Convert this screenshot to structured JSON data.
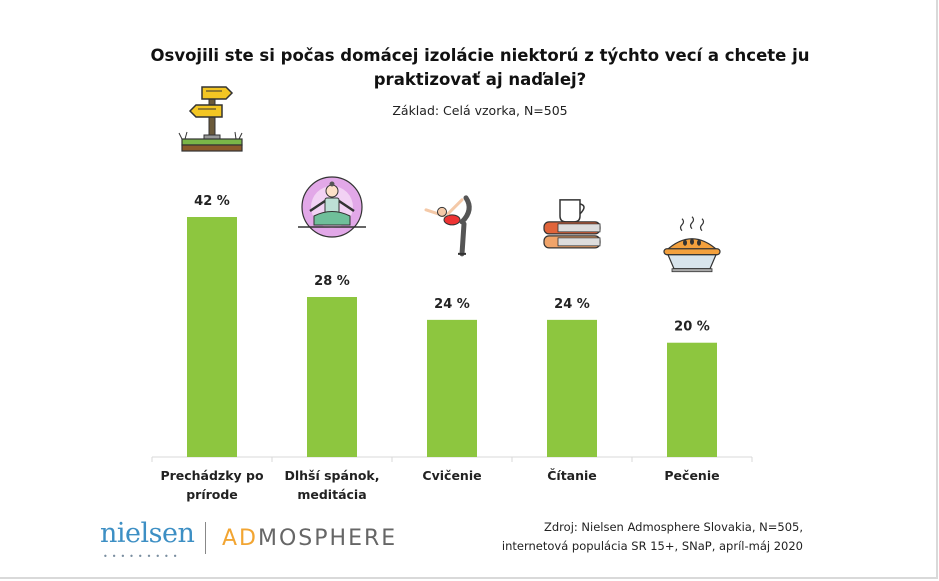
{
  "chart_data": {
    "type": "bar",
    "title": "Osvojili ste si počas domácej izolácie niektorú z týchto vecí a chcete ju praktizovať aj naďalej?",
    "title_lines": [
      "Osvojili ste si počas domácej izolácie niektorú z týchto vecí a chcete ju",
      "praktizovať aj naďalej?"
    ],
    "subtitle": "Základ: Celá vzorka, N=505",
    "categories": [
      "Prechádzky po prírode",
      "Dlhší spánok, meditácia",
      "Cvičenie",
      "Čítanie",
      "Pečenie"
    ],
    "category_lines": [
      [
        "Prechádzky po",
        "prírode"
      ],
      [
        "Dlhší spánok,",
        "meditácia"
      ],
      [
        "Cvičenie"
      ],
      [
        "Čítanie"
      ],
      [
        "Pečenie"
      ]
    ],
    "values": [
      42,
      28,
      24,
      24,
      20
    ],
    "data_labels": [
      "42 %",
      "28 %",
      "24 %",
      "24 %",
      "20 %"
    ],
    "icons": [
      "signpost-icon",
      "meditation-icon",
      "yoga-icon",
      "books-coffee-icon",
      "pie-icon"
    ],
    "xlabel": "",
    "ylabel": "",
    "ylim": [
      0,
      42
    ],
    "grid": false,
    "legend": "none",
    "bar_color": "#8dc63f"
  },
  "footer": {
    "logo_nielsen": "nielsen",
    "logo_admosphere_ad": "AD",
    "logo_admosphere_rest": "MOSPHERE",
    "source_lines": [
      "Zdroj: Nielsen Admosphere Slovakia, N=505,",
      "internetová populácia SR 15+, SNaP, apríl-máj 2020"
    ]
  }
}
